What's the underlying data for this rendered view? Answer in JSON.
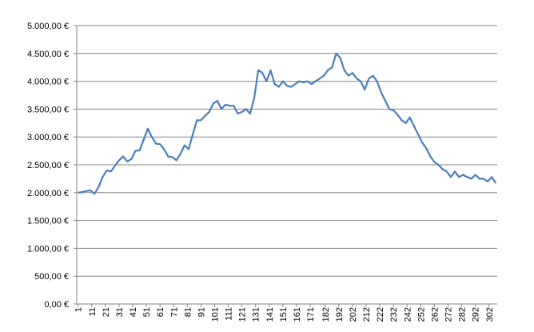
{
  "chart_data": {
    "type": "line",
    "x": [
      1,
      4,
      7,
      10,
      13,
      16,
      19,
      22,
      25,
      28,
      31,
      34,
      37,
      40,
      43,
      46,
      49,
      52,
      55,
      58,
      61,
      64,
      67,
      70,
      73,
      76,
      79,
      82,
      85,
      88,
      91,
      94,
      97,
      100,
      103,
      106,
      109,
      112,
      115,
      118,
      121,
      124,
      127,
      130,
      133,
      136,
      139,
      142,
      145,
      148,
      151,
      154,
      157,
      160,
      163,
      166,
      169,
      172,
      175,
      178,
      181,
      184,
      187,
      190,
      193,
      196,
      199,
      202,
      205,
      208,
      211,
      214,
      217,
      220,
      223,
      226,
      229,
      232,
      235,
      238,
      241,
      244,
      247,
      250,
      253,
      256,
      259,
      262,
      265,
      268,
      271,
      274,
      277,
      280,
      283,
      286,
      289,
      292,
      295,
      298,
      301,
      304,
      307
    ],
    "series": [
      {
        "color": "#4a7ebb",
        "values": [
          2000,
          2010,
          2030,
          2040,
          1980,
          2100,
          2280,
          2400,
          2380,
          2480,
          2580,
          2650,
          2560,
          2600,
          2750,
          2760,
          2950,
          3150,
          3000,
          2880,
          2870,
          2780,
          2650,
          2640,
          2580,
          2700,
          2850,
          2780,
          3050,
          3300,
          3300,
          3380,
          3450,
          3600,
          3650,
          3500,
          3580,
          3560,
          3560,
          3420,
          3450,
          3500,
          3420,
          3700,
          4200,
          4150,
          4000,
          4200,
          3950,
          3900,
          4000,
          3920,
          3900,
          3950,
          4000,
          3980,
          4000,
          3950,
          4000,
          4050,
          4100,
          4200,
          4250,
          4500,
          4420,
          4200,
          4100,
          4150,
          4050,
          4000,
          3850,
          4050,
          4100,
          4000,
          3800,
          3650,
          3500,
          3480,
          3400,
          3300,
          3250,
          3350,
          3200,
          3050,
          2900,
          2800,
          2650,
          2550,
          2500,
          2420,
          2380,
          2280,
          2380,
          2280,
          2320,
          2280,
          2250,
          2320,
          2250,
          2250,
          2200,
          2280,
          2170
        ]
      }
    ],
    "xlim": [
      0,
      308
    ],
    "xticks": [
      1,
      11,
      21,
      31,
      41,
      51,
      61,
      71,
      81,
      91,
      101,
      111,
      121,
      131,
      141,
      151,
      161,
      171,
      182,
      192,
      202,
      212,
      222,
      232,
      242,
      252,
      262,
      272,
      282,
      292,
      302
    ],
    "ylim": [
      0,
      5000
    ],
    "yticks": [
      {
        "value": 0,
        "label": "0,00 €"
      },
      {
        "value": 500,
        "label": "500,00 €"
      },
      {
        "value": 1000,
        "label": "1.000,00 €"
      },
      {
        "value": 1500,
        "label": "1.500,00 €"
      },
      {
        "value": 2000,
        "label": "2.000,00 €"
      },
      {
        "value": 2500,
        "label": "2.500,00 €"
      },
      {
        "value": 3000,
        "label": "3.000,00 €"
      },
      {
        "value": 3500,
        "label": "3.500,00 €"
      },
      {
        "value": 4000,
        "label": "4.000,00 €"
      },
      {
        "value": 4500,
        "label": "4.500,00 €"
      },
      {
        "value": 5000,
        "label": "5.000,00 €"
      }
    ],
    "grid": true
  }
}
